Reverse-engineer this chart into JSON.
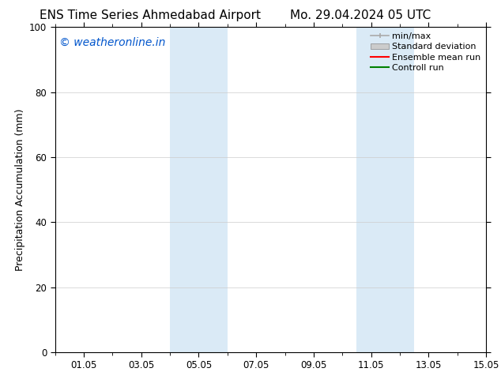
{
  "title_left": "ENS Time Series Ahmedabad Airport",
  "title_right": "Mo. 29.04.2024 05 UTC",
  "ylabel": "Precipitation Accumulation (mm)",
  "xlim": [
    0,
    14
  ],
  "ylim": [
    0,
    100
  ],
  "yticks": [
    0,
    20,
    40,
    60,
    80,
    100
  ],
  "xtick_positions": [
    1,
    3,
    5,
    7,
    9,
    11,
    13,
    15
  ],
  "xtick_labels": [
    "01.05",
    "03.05",
    "05.05",
    "07.05",
    "09.05",
    "11.05",
    "13.05",
    "15.05"
  ],
  "shaded_regions": [
    {
      "x_start": 4.0,
      "x_end": 6.0
    },
    {
      "x_start": 10.5,
      "x_end": 12.5
    }
  ],
  "shaded_color": "#daeaf6",
  "watermark_text": "© weatheronline.in",
  "watermark_color": "#0055cc",
  "bg_color": "#ffffff",
  "plot_bg_color": "#ffffff",
  "legend_items": [
    {
      "label": "min/max",
      "color": "#aaaaaa",
      "style": "line_with_caps"
    },
    {
      "label": "Standard deviation",
      "color": "#cccccc",
      "style": "filled_rect"
    },
    {
      "label": "Ensemble mean run",
      "color": "#ff0000",
      "style": "line"
    },
    {
      "label": "Controll run",
      "color": "#008000",
      "style": "line"
    }
  ],
  "title_fontsize": 11,
  "axis_fontsize": 9,
  "tick_fontsize": 8.5,
  "watermark_fontsize": 10,
  "legend_fontsize": 8
}
